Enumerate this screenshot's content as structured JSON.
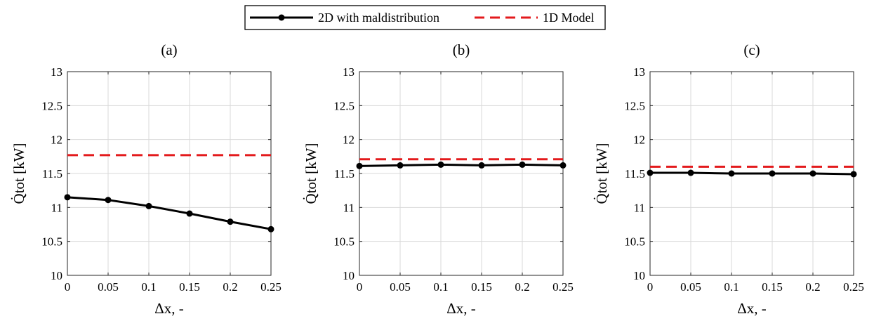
{
  "legend": {
    "entries": [
      {
        "label": "2D with maldistribution",
        "color": "#000000",
        "style": "solid-marker"
      },
      {
        "label": "1D Model",
        "color": "#e31a1c",
        "style": "dashed"
      }
    ],
    "placement": "top-center"
  },
  "chart_data": [
    {
      "type": "line",
      "title": "(a)",
      "xlabel": "Δx, -",
      "ylabel": "Q̇tot [kW]",
      "xlim": [
        0,
        0.25
      ],
      "ylim": [
        10,
        13
      ],
      "grid": true,
      "x": [
        0,
        0.05,
        0.1,
        0.15,
        0.2,
        0.25
      ],
      "x_ticks": [
        "0",
        "0.05",
        "0.1",
        "0.15",
        "0.2",
        "0.25"
      ],
      "y_ticks": [
        "10",
        "10.5",
        "11",
        "11.5",
        "12",
        "12.5",
        "13"
      ],
      "series": [
        {
          "name": "2D with maldistribution",
          "values": [
            11.15,
            11.11,
            11.02,
            10.91,
            10.79,
            10.68
          ]
        },
        {
          "name": "1D Model",
          "values": [
            11.77,
            11.77,
            11.77,
            11.77,
            11.77,
            11.77
          ]
        }
      ]
    },
    {
      "type": "line",
      "title": "(b)",
      "xlabel": "Δx, -",
      "ylabel": "Q̇tot [kW]",
      "xlim": [
        0,
        0.25
      ],
      "ylim": [
        10,
        13
      ],
      "grid": true,
      "x": [
        0,
        0.05,
        0.1,
        0.15,
        0.2,
        0.25
      ],
      "x_ticks": [
        "0",
        "0.05",
        "0.1",
        "0.15",
        "0.2",
        "0.25"
      ],
      "y_ticks": [
        "10",
        "10.5",
        "11",
        "11.5",
        "12",
        "12.5",
        "13"
      ],
      "series": [
        {
          "name": "2D with maldistribution",
          "values": [
            11.61,
            11.62,
            11.63,
            11.62,
            11.63,
            11.62
          ]
        },
        {
          "name": "1D Model",
          "values": [
            11.71,
            11.71,
            11.71,
            11.71,
            11.71,
            11.71
          ]
        }
      ]
    },
    {
      "type": "line",
      "title": "(c)",
      "xlabel": "Δx, -",
      "ylabel": "Q̇tot [kW]",
      "xlim": [
        0,
        0.25
      ],
      "ylim": [
        10,
        13
      ],
      "grid": true,
      "x": [
        0,
        0.05,
        0.1,
        0.15,
        0.2,
        0.25
      ],
      "x_ticks": [
        "0",
        "0.05",
        "0.1",
        "0.15",
        "0.2",
        "0.25"
      ],
      "y_ticks": [
        "10",
        "10.5",
        "11",
        "11.5",
        "12",
        "12.5",
        "13"
      ],
      "series": [
        {
          "name": "2D with maldistribution",
          "values": [
            11.51,
            11.51,
            11.5,
            11.5,
            11.5,
            11.49
          ]
        },
        {
          "name": "1D Model",
          "values": [
            11.6,
            11.6,
            11.6,
            11.6,
            11.6,
            11.6
          ]
        }
      ]
    }
  ]
}
